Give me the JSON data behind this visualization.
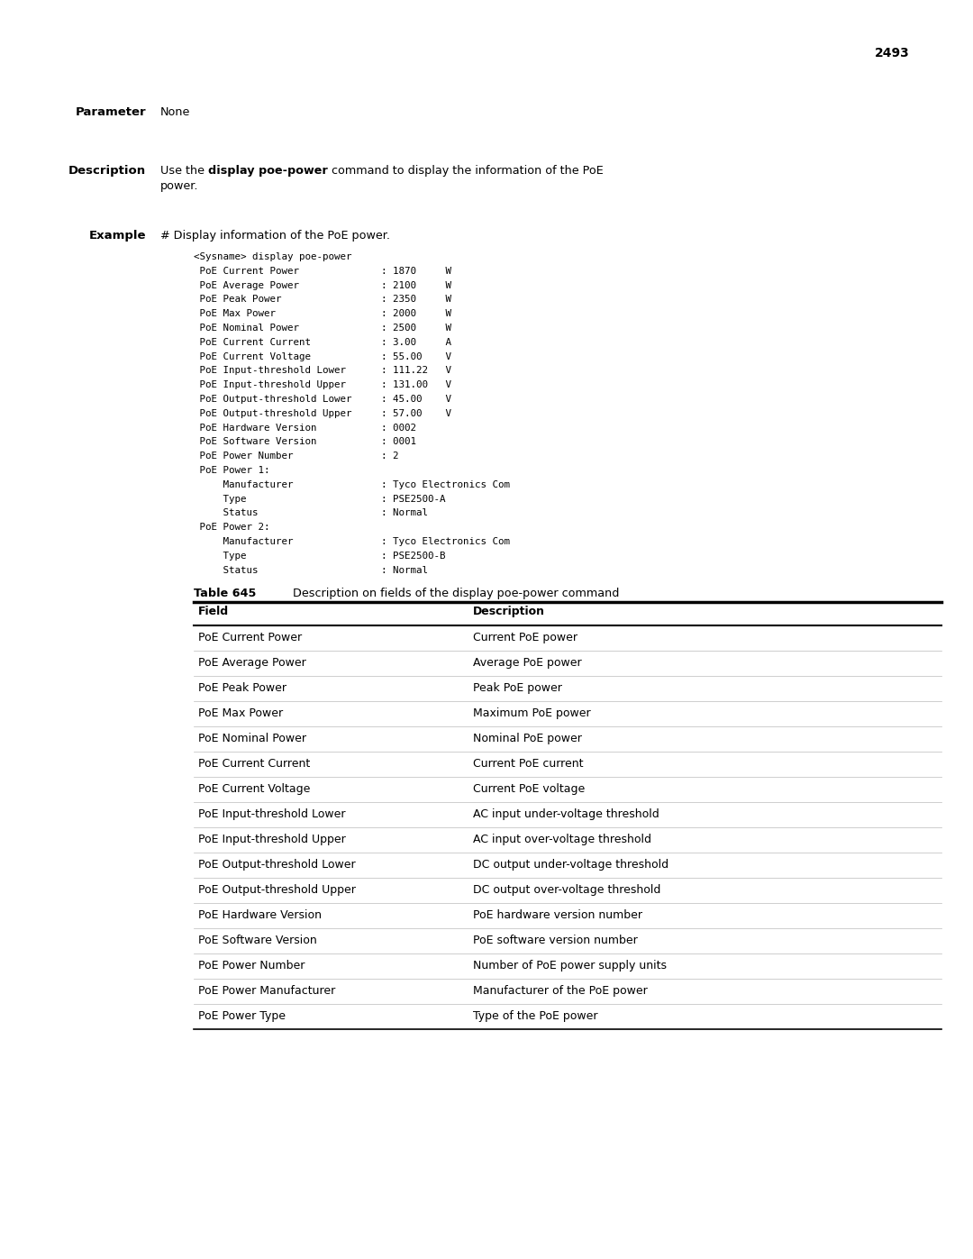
{
  "page_number": "2493",
  "param_label": "Parameter",
  "param_value": "None",
  "desc_label": "Description",
  "desc_text_pre": "Use the ",
  "desc_text_bold": "display poe-power",
  "desc_text_post": " command to display the information of the PoE",
  "desc_text_line2": "power.",
  "example_label": "Example",
  "example_intro": "# Display information of the PoE power.",
  "code_lines": [
    "<Sysname> display poe-power",
    " PoE Current Power              : 1870     W",
    " PoE Average Power              : 2100     W",
    " PoE Peak Power                 : 2350     W",
    " PoE Max Power                  : 2000     W",
    " PoE Nominal Power              : 2500     W",
    " PoE Current Current            : 3.00     A",
    " PoE Current Voltage            : 55.00    V",
    " PoE Input-threshold Lower      : 111.22   V",
    " PoE Input-threshold Upper      : 131.00   V",
    " PoE Output-threshold Lower     : 45.00    V",
    " PoE Output-threshold Upper     : 57.00    V",
    " PoE Hardware Version           : 0002",
    " PoE Software Version           : 0001",
    " PoE Power Number               : 2",
    " PoE Power 1:",
    "     Manufacturer               : Tyco Electronics Com",
    "     Type                       : PSE2500-A",
    "     Status                     : Normal",
    " PoE Power 2:",
    "     Manufacturer               : Tyco Electronics Com",
    "     Type                       : PSE2500-B",
    "     Status                     : Normal"
  ],
  "table_title_bold": "Table 645",
  "table_title_normal": "  Description on fields of the display poe-power command",
  "table_col1_header": "Field",
  "table_col2_header": "Description",
  "table_rows": [
    [
      "PoE Current Power",
      "Current PoE power"
    ],
    [
      "PoE Average Power",
      "Average PoE power"
    ],
    [
      "PoE Peak Power",
      "Peak PoE power"
    ],
    [
      "PoE Max Power",
      "Maximum PoE power"
    ],
    [
      "PoE Nominal Power",
      "Nominal PoE power"
    ],
    [
      "PoE Current Current",
      "Current PoE current"
    ],
    [
      "PoE Current Voltage",
      "Current PoE voltage"
    ],
    [
      "PoE Input-threshold Lower",
      "AC input under-voltage threshold"
    ],
    [
      "PoE Input-threshold Upper",
      "AC input over-voltage threshold"
    ],
    [
      "PoE Output-threshold Lower",
      "DC output under-voltage threshold"
    ],
    [
      "PoE Output-threshold Upper",
      "DC output over-voltage threshold"
    ],
    [
      "PoE Hardware Version",
      "PoE hardware version number"
    ],
    [
      "PoE Software Version",
      "PoE software version number"
    ],
    [
      "PoE Power Number",
      "Number of PoE power supply units"
    ],
    [
      "PoE Power Manufacturer",
      "Manufacturer of the PoE power"
    ],
    [
      "PoE Power Type",
      "Type of the PoE power"
    ]
  ],
  "bg_color": "#ffffff",
  "text_color": "#000000",
  "code_font_size": 7.8,
  "body_font_size": 9.2,
  "label_font_size": 9.5,
  "table_font_size": 9.0
}
